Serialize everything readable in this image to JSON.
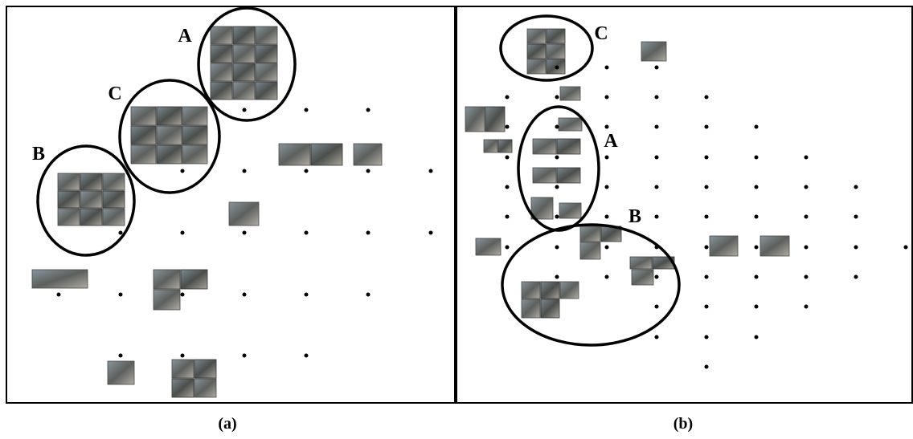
{
  "panels": [
    {
      "caption": "(a)",
      "groups": [
        "A",
        "C",
        "B"
      ]
    },
    {
      "caption": "(b)",
      "groups": [
        "C",
        "A",
        "B"
      ]
    }
  ]
}
